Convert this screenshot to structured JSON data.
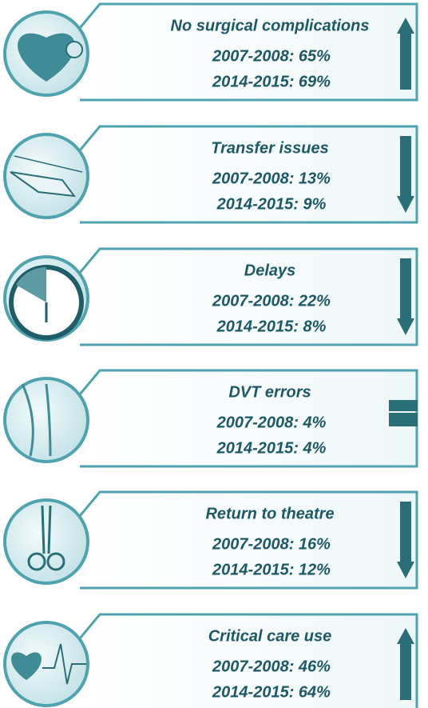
{
  "items": [
    {
      "title": "No surgical complications",
      "lines": [
        "2007-2008: 65%",
        "2014-2015: 69%"
      ]
    },
    {
      "title": "Transfer issues",
      "lines": [
        "2007-2008: 13%",
        "2014-2015: 9%"
      ]
    },
    {
      "title": "Delays",
      "lines": [
        "2007-2008: 22%",
        "2014-2015: 8%"
      ]
    },
    {
      "title": "DVT errors",
      "lines": [
        "2007-2008: 4%",
        "2014-2015: 4%"
      ]
    },
    {
      "title": "Return to theatre",
      "lines": [
        "2007-2008: 16%",
        "2014-2015: 12%"
      ]
    },
    {
      "title": "Critical care use",
      "lines": [
        "2007-2008: 46%",
        "2014-2015: 64%"
      ]
    }
  ]
}
